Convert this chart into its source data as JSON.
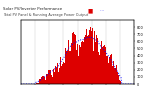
{
  "title1": "Solar PV/Inverter Performance",
  "title2": "Total PV Panel & Running Average Power Output",
  "bar_color": "#dd0000",
  "line_color": "#0000ff",
  "bg_color": "#ffffff",
  "grid_color": "#bbbbbb",
  "n_bars": 144,
  "ylim_left": [
    0,
    900
  ],
  "ylim_right": [
    0,
    900
  ],
  "yticks_right": [
    0,
    100,
    200,
    300,
    400,
    500,
    600,
    700,
    800
  ],
  "legend_pv_color": "#dd0000",
  "legend_avg_color": "#0000ff"
}
